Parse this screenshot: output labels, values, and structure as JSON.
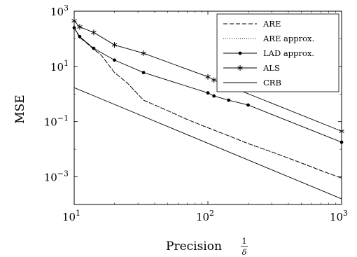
{
  "chart_data": {
    "type": "line",
    "x_scale": "log",
    "y_scale": "log",
    "xlabel": "Precision",
    "xlabel_fraction": {
      "numerator": "1",
      "denominator": "δ"
    },
    "ylabel": "MSE",
    "xlim": [
      10,
      1000
    ],
    "ylim": [
      0.0001,
      1000
    ],
    "grid": false,
    "legend_position": "top-right",
    "x_ticks": [
      {
        "base": "10",
        "exp": "1",
        "value": 10
      },
      {
        "base": "10",
        "exp": "2",
        "value": 100
      },
      {
        "base": "10",
        "exp": "3",
        "value": 1000
      }
    ],
    "y_ticks": [
      {
        "base": "10",
        "exp": "3",
        "value": 1000
      },
      {
        "base": "10",
        "exp": "1",
        "value": 10
      },
      {
        "base": "10",
        "exp": "−1",
        "value": 0.1
      },
      {
        "base": "10",
        "exp": "−3",
        "value": 0.001
      }
    ],
    "series": [
      {
        "name": "ARE",
        "style": "dashed",
        "marker": "none",
        "x": [
          10,
          11,
          12,
          14,
          16,
          20,
          25,
          33,
          50,
          70,
          100,
          150,
          200,
          300,
          500,
          700,
          1000
        ],
        "y": [
          250,
          110,
          80,
          42,
          25,
          6,
          2.5,
          0.6,
          0.25,
          0.12,
          0.06,
          0.028,
          0.016,
          0.008,
          0.0032,
          0.0017,
          0.0009
        ]
      },
      {
        "name": "ARE approx.",
        "style": "dotted",
        "marker": "none",
        "x": [
          10,
          11,
          12,
          14,
          16,
          20,
          25,
          33,
          50,
          70,
          100,
          150,
          200,
          300,
          500,
          700,
          1000
        ],
        "y": [
          250,
          110,
          80,
          42,
          25,
          6,
          2.5,
          0.6,
          0.25,
          0.12,
          0.06,
          0.028,
          0.016,
          0.008,
          0.0032,
          0.0017,
          0.0009
        ]
      },
      {
        "name": "LAD approx.",
        "style": "solid",
        "marker": "dot",
        "x": [
          10,
          11,
          14,
          20,
          33,
          100,
          111,
          143,
          200,
          1000
        ],
        "y": [
          250,
          120,
          45,
          17,
          6,
          1.1,
          0.85,
          0.6,
          0.4,
          0.018
        ]
      },
      {
        "name": "ALS",
        "style": "solid",
        "marker": "star",
        "x": [
          10,
          11,
          14,
          20,
          33,
          100,
          111,
          1000
        ],
        "y": [
          450,
          270,
          170,
          60,
          30,
          4.2,
          3.2,
          0.045
        ]
      },
      {
        "name": "CRB",
        "style": "solid",
        "marker": "none",
        "x": [
          10,
          1000
        ],
        "y": [
          1.7,
          0.00016
        ]
      }
    ]
  }
}
